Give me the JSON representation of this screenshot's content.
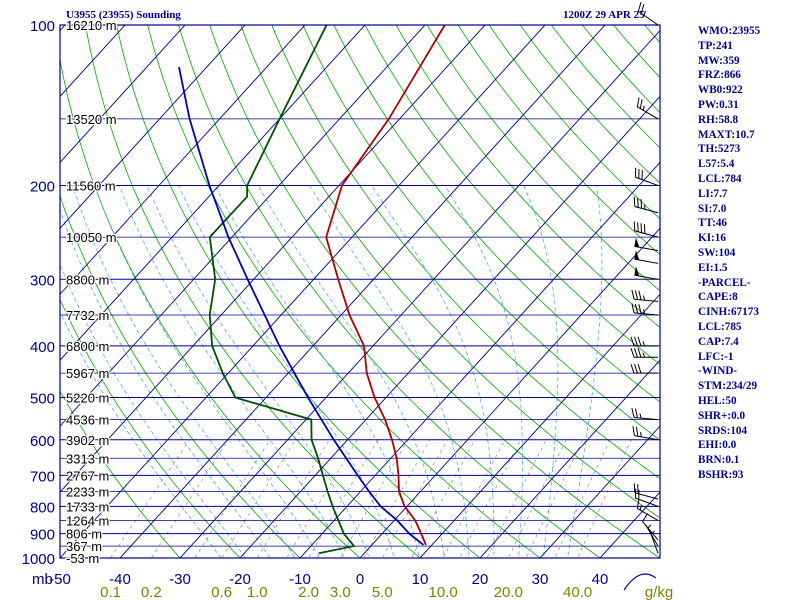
{
  "header": {
    "station": "U3955 (23955) Sounding",
    "time": "1200Z 29 APR 25"
  },
  "indices": [
    "WMO:23955",
    "TP:241",
    "MW:359",
    "FRZ:866",
    "WB0:922",
    "PW:0.31",
    "RH:58.8",
    "MAXT:10.7",
    "TH:5273",
    "L57:5.4",
    "LCL:784",
    "LI:7.7",
    "SI:7.0",
    "TT:46",
    "KI:16",
    "SW:104",
    "EI:1.5",
    "-PARCEL-",
    "CAPE:8",
    "CINH:67173",
    "LCL:785",
    "CAP:7.4",
    "LFC:-1",
    "-WIND-",
    "STM:234/29",
    "HEL:50",
    "SHR+:0.0",
    "SRDS:104",
    "EHI:0.0",
    "BRN:0.1",
    "BSHR:93"
  ],
  "colors": {
    "frame": "#00008b",
    "isobar": "#00008b",
    "isotherm": "#00008b",
    "dry_adiabat": "#00aa00",
    "moist_adiabat": "#55aadd",
    "mixing_ratio": "#888888",
    "temperature": "#b00000",
    "dewpoint": "#005000",
    "parcel": "#0000b0",
    "text": "#00008b",
    "mixing_text": "#808000",
    "wind": "#000000"
  },
  "chart_data": {
    "type": "line",
    "chart_kind": "skew-t log-p sounding",
    "yscale": "log",
    "ylim": [
      1000,
      100
    ],
    "pressure_label": "mb",
    "pressure_ticks": [
      {
        "p": 100,
        "label": "100"
      },
      {
        "p": 200,
        "label": "200"
      },
      {
        "p": 300,
        "label": "300"
      },
      {
        "p": 400,
        "label": "400"
      },
      {
        "p": 500,
        "label": "500"
      },
      {
        "p": 600,
        "label": "600"
      },
      {
        "p": 700,
        "label": "700"
      },
      {
        "p": 800,
        "label": "800"
      },
      {
        "p": 900,
        "label": "900"
      },
      {
        "p": 1000,
        "label": "1000"
      }
    ],
    "height_labels": [
      {
        "p": 100,
        "label": "16210 m"
      },
      {
        "p": 150,
        "label": "13520 m"
      },
      {
        "p": 200,
        "label": "11560 m"
      },
      {
        "p": 250,
        "label": "10050 m"
      },
      {
        "p": 300,
        "label": "8800 m"
      },
      {
        "p": 350,
        "label": "7732 m"
      },
      {
        "p": 400,
        "label": "6800 m"
      },
      {
        "p": 450,
        "label": "5967 m"
      },
      {
        "p": 500,
        "label": "5220 m"
      },
      {
        "p": 550,
        "label": "4536 m"
      },
      {
        "p": 600,
        "label": "3902 m"
      },
      {
        "p": 650,
        "label": "3313 m"
      },
      {
        "p": 700,
        "label": "2767 m"
      },
      {
        "p": 750,
        "label": "2233 m"
      },
      {
        "p": 800,
        "label": "1733 m"
      },
      {
        "p": 850,
        "label": "1264 m"
      },
      {
        "p": 900,
        "label": "806 m"
      },
      {
        "p": 950,
        "label": "367 m"
      },
      {
        "p": 1000,
        "label": "-53 m"
      }
    ],
    "temperature_ticks": [
      -50,
      -40,
      -30,
      -20,
      -10,
      0,
      10,
      20,
      30,
      40
    ],
    "xlim": [
      -50,
      50
    ],
    "mixing_ratio_unit": "g/kg",
    "mixing_ratio_labels": [
      {
        "w": 0.1,
        "label": "0.1"
      },
      {
        "w": 0.2,
        "label": "0.2"
      },
      {
        "w": 0.6,
        "label": "0.6"
      },
      {
        "w": 1.0,
        "label": "1.0"
      },
      {
        "w": 2.0,
        "label": "2.0"
      },
      {
        "w": 3.0,
        "label": "3.0"
      },
      {
        "w": 5.0,
        "label": "5.0"
      },
      {
        "w": 10.0,
        "label": "10.0"
      },
      {
        "w": 20.0,
        "label": "20.0"
      },
      {
        "w": 40.0,
        "label": "40.0"
      }
    ],
    "series": [
      {
        "name": "",
        "role": "temperature",
        "points": [
          [
            945,
            9.0
          ],
          [
            900,
            6.5
          ],
          [
            850,
            3.5
          ],
          [
            800,
            -0.4
          ],
          [
            750,
            -3.6
          ],
          [
            700,
            -6.1
          ],
          [
            650,
            -9.0
          ],
          [
            600,
            -12.6
          ],
          [
            550,
            -16.8
          ],
          [
            500,
            -21.9
          ],
          [
            450,
            -26.9
          ],
          [
            400,
            -31.5
          ],
          [
            350,
            -38.6
          ],
          [
            300,
            -45.9
          ],
          [
            250,
            -54.3
          ],
          [
            200,
            -59.5
          ],
          [
            150,
            -61.8
          ],
          [
            100,
            -66.7
          ]
        ]
      },
      {
        "name": "",
        "role": "dewpoint",
        "points": [
          [
            980,
            -7.6
          ],
          [
            950,
            -2.8
          ],
          [
            900,
            -6.4
          ],
          [
            850,
            -9.3
          ],
          [
            800,
            -12.4
          ],
          [
            750,
            -15.5
          ],
          [
            700,
            -18.7
          ],
          [
            650,
            -22.1
          ],
          [
            600,
            -26.0
          ],
          [
            550,
            -29.1
          ],
          [
            500,
            -45.1
          ],
          [
            450,
            -50.9
          ],
          [
            400,
            -56.8
          ],
          [
            350,
            -61.9
          ],
          [
            300,
            -66.4
          ],
          [
            250,
            -73.7
          ],
          [
            210,
            -73.6
          ],
          [
            200,
            -75.3
          ],
          [
            150,
            -80.0
          ],
          [
            100,
            -86.4
          ]
        ]
      },
      {
        "name": "",
        "role": "parcel",
        "points": [
          [
            945,
            8.6
          ],
          [
            900,
            4.5
          ],
          [
            850,
            0.5
          ],
          [
            800,
            -4.4
          ],
          [
            750,
            -8.6
          ],
          [
            700,
            -12.9
          ],
          [
            600,
            -22.3
          ],
          [
            500,
            -33.0
          ],
          [
            400,
            -45.6
          ],
          [
            300,
            -61.0
          ],
          [
            250,
            -70.6
          ],
          [
            200,
            -81.6
          ],
          [
            150,
            -95.0
          ],
          [
            120,
            -104.6
          ]
        ]
      }
    ],
    "wind_barbs": [
      {
        "p": 980,
        "dir": 340,
        "spd": 5
      },
      {
        "p": 950,
        "dir": 330,
        "spd": 5
      },
      {
        "p": 925,
        "dir": 320,
        "spd": 10
      },
      {
        "p": 850,
        "dir": 300,
        "spd": 15
      },
      {
        "p": 800,
        "dir": 290,
        "spd": 20
      },
      {
        "p": 775,
        "dir": 285,
        "spd": 20
      },
      {
        "p": 600,
        "dir": 280,
        "spd": 25
      },
      {
        "p": 550,
        "dir": 275,
        "spd": 25
      },
      {
        "p": 450,
        "dir": 270,
        "spd": 30
      },
      {
        "p": 420,
        "dir": 270,
        "spd": 35
      },
      {
        "p": 400,
        "dir": 270,
        "spd": 35
      },
      {
        "p": 350,
        "dir": 275,
        "spd": 35
      },
      {
        "p": 330,
        "dir": 275,
        "spd": 35
      },
      {
        "p": 300,
        "dir": 280,
        "spd": 50
      },
      {
        "p": 280,
        "dir": 280,
        "spd": 50
      },
      {
        "p": 265,
        "dir": 280,
        "spd": 50
      },
      {
        "p": 250,
        "dir": 285,
        "spd": 40
      },
      {
        "p": 225,
        "dir": 285,
        "spd": 35
      },
      {
        "p": 200,
        "dir": 290,
        "spd": 30
      },
      {
        "p": 150,
        "dir": 300,
        "spd": 25
      },
      {
        "p": 100,
        "dir": 305,
        "spd": 25
      }
    ]
  }
}
